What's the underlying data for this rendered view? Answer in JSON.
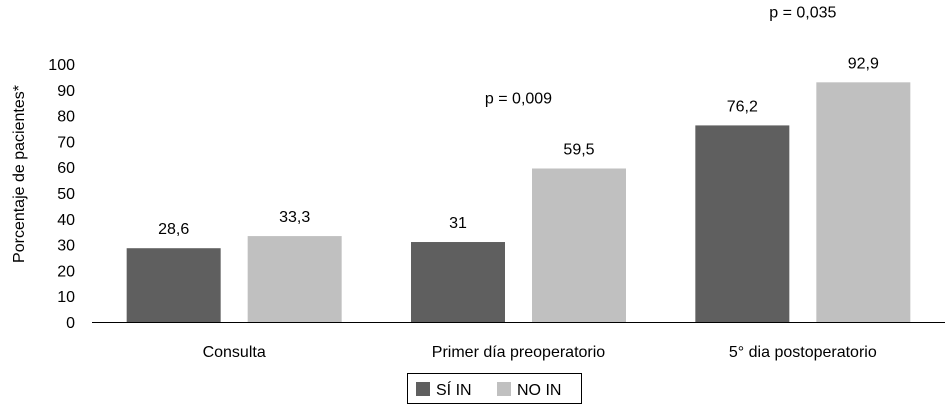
{
  "chart_data": {
    "type": "bar",
    "title": "",
    "xlabel": "",
    "ylabel": "Porcentaje de pacientes*",
    "ylim": [
      0,
      100
    ],
    "yticks": [
      0,
      10,
      20,
      30,
      40,
      50,
      60,
      70,
      80,
      90,
      100
    ],
    "categories": [
      "Consulta",
      "Primer día preoperatorio",
      "5° dia postoperatorio"
    ],
    "series": [
      {
        "name": "SÍ IN",
        "color": "#5f5f5f",
        "values": [
          28.6,
          31,
          76.2
        ],
        "labels": [
          "28,6",
          "31",
          "76,2"
        ]
      },
      {
        "name": "NO IN",
        "color": "#c0c0c0",
        "values": [
          33.3,
          59.5,
          92.9
        ],
        "labels": [
          "33,3",
          "59,5",
          "92,9"
        ]
      }
    ],
    "annotations": [
      {
        "text": "p = 0,009",
        "category": 1
      },
      {
        "text": "p = 0,035",
        "category": 2
      }
    ],
    "legend": {
      "position": "bottom",
      "entries": [
        "SÍ IN",
        "NO IN"
      ]
    },
    "grid": false
  }
}
